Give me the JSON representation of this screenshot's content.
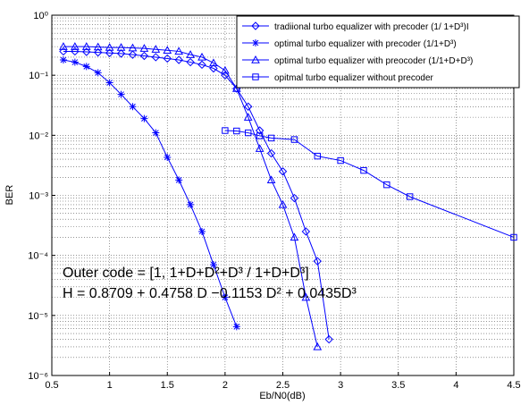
{
  "chart_data": {
    "type": "line",
    "x_label": "Eb/N0(dB)",
    "y_label": "BER",
    "log_y": true,
    "grid": true,
    "legend_position": "upper right",
    "xlim": [
      0.5,
      4.5
    ],
    "xticks": [
      0.5,
      1,
      1.5,
      2,
      2.5,
      3,
      3.5,
      4,
      4.5
    ],
    "ylim": [
      1e-06,
      1
    ],
    "yticks": [
      {
        "value": 1e-06,
        "label": "10⁻⁶"
      },
      {
        "value": 1e-05,
        "label": "10⁻⁵"
      },
      {
        "value": 0.0001,
        "label": "10⁻⁴"
      },
      {
        "value": 0.001,
        "label": "10⁻³"
      },
      {
        "value": 0.01,
        "label": "10⁻²"
      },
      {
        "value": 0.1,
        "label": "10⁻¹"
      },
      {
        "value": 1,
        "label": "10⁰"
      }
    ],
    "annotations": [
      "Outer code =  [1, 1+D+D²+D³ / 1+D+D³]",
      "H = 0.8709 + 0.4758 D −0.1153 D² + 0.0435D³"
    ],
    "series": [
      {
        "name": "tradiional turbo equalizer with precoder (1/ 1+D³)I",
        "color": "#0000ff",
        "marker": "diamond",
        "x": [
          0.6,
          0.7,
          0.8,
          0.9,
          1.0,
          1.1,
          1.2,
          1.3,
          1.4,
          1.5,
          1.6,
          1.7,
          1.8,
          1.9,
          2.0,
          2.1,
          2.2,
          2.3,
          2.4,
          2.5,
          2.6,
          2.7,
          2.8,
          2.9
        ],
        "values": [
          0.25,
          0.25,
          0.245,
          0.24,
          0.235,
          0.23,
          0.22,
          0.21,
          0.2,
          0.19,
          0.18,
          0.165,
          0.15,
          0.13,
          0.1,
          0.06,
          0.03,
          0.012,
          0.005,
          0.0025,
          0.0009,
          0.00025,
          8e-05,
          4e-06
        ]
      },
      {
        "name": "optimal turbo equalizer with precoder (1/1+D³)",
        "color": "#0000ff",
        "marker": "star",
        "x": [
          0.6,
          0.7,
          0.8,
          0.9,
          1.0,
          1.1,
          1.2,
          1.3,
          1.4,
          1.5,
          1.6,
          1.7,
          1.8,
          1.9,
          2.0,
          2.1
        ],
        "values": [
          0.18,
          0.165,
          0.14,
          0.11,
          0.075,
          0.048,
          0.03,
          0.019,
          0.011,
          0.0043,
          0.0018,
          0.0007,
          0.00025,
          7e-05,
          2e-05,
          6.5e-06
        ]
      },
      {
        "name": "optimal turbo equalizer with preocoder (1/1+D+D³)",
        "color": "#0000ff",
        "marker": "triangle",
        "x": [
          0.6,
          0.7,
          0.8,
          0.9,
          1.0,
          1.1,
          1.2,
          1.3,
          1.4,
          1.5,
          1.6,
          1.7,
          1.8,
          1.9,
          2.0,
          2.1,
          2.2,
          2.3,
          2.4,
          2.5,
          2.6,
          2.7,
          2.8
        ],
        "values": [
          0.3,
          0.3,
          0.3,
          0.295,
          0.29,
          0.29,
          0.285,
          0.28,
          0.27,
          0.26,
          0.25,
          0.22,
          0.2,
          0.16,
          0.12,
          0.06,
          0.02,
          0.006,
          0.0018,
          0.0007,
          0.0002,
          2e-05,
          3e-06
        ]
      },
      {
        "name": "opitmal turbo equalizer without precoder",
        "color": "#0000ff",
        "marker": "square",
        "x": [
          2.0,
          2.1,
          2.2,
          2.3,
          2.4,
          2.6,
          2.8,
          3.0,
          3.2,
          3.4,
          3.6,
          4.5
        ],
        "values": [
          0.012,
          0.0118,
          0.011,
          0.0098,
          0.009,
          0.0085,
          0.0045,
          0.0038,
          0.0026,
          0.0015,
          0.00095,
          0.0002
        ]
      }
    ]
  }
}
